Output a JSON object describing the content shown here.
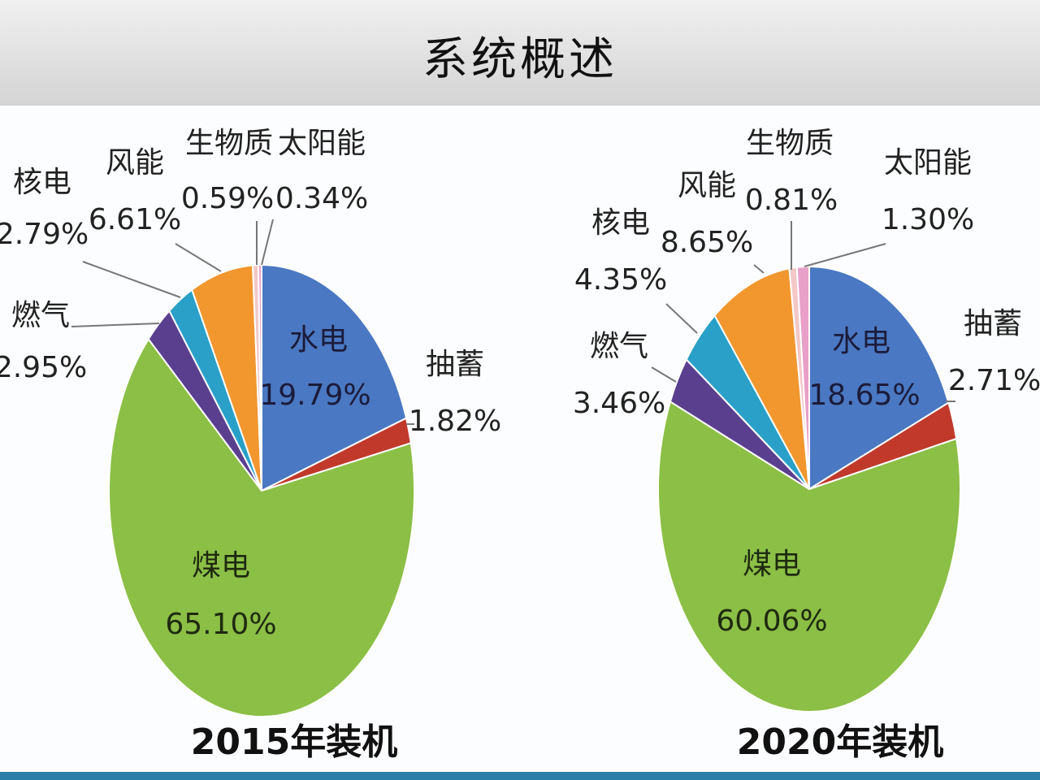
{
  "page": {
    "title": "系统概述"
  },
  "colors": {
    "水电": "#4a78c2",
    "抽蓄": "#c0392b",
    "煤电": "#8bbf46",
    "燃气": "#5a3f8f",
    "核电": "#2aa0c8",
    "风能": "#f2962e",
    "生物质": "#f4c8c8",
    "太阳能": "#e8a0c8"
  },
  "chart_data": [
    {
      "type": "pie",
      "caption": "2015年装机",
      "slices": [
        {
          "name": "水电",
          "value": 19.79,
          "label": "19.79%"
        },
        {
          "name": "抽蓄",
          "value": 1.82,
          "label": "1.82%"
        },
        {
          "name": "煤电",
          "value": 65.1,
          "label": "65.10%"
        },
        {
          "name": "燃气",
          "value": 2.95,
          "label": "2.95%"
        },
        {
          "name": "核电",
          "value": 2.79,
          "label": "2.79%"
        },
        {
          "name": "风能",
          "value": 6.61,
          "label": "6.61%"
        },
        {
          "name": "生物质",
          "value": 0.59,
          "label": "0.59%"
        },
        {
          "name": "太阳能",
          "value": 0.34,
          "label": "0.34%"
        }
      ]
    },
    {
      "type": "pie",
      "caption": "2020年装机",
      "slices": [
        {
          "name": "水电",
          "value": 18.65,
          "label": "18.65%"
        },
        {
          "name": "抽蓄",
          "value": 2.71,
          "label": "2.71%"
        },
        {
          "name": "煤电",
          "value": 60.06,
          "label": "60.06%"
        },
        {
          "name": "燃气",
          "value": 3.46,
          "label": "3.46%"
        },
        {
          "name": "核电",
          "value": 4.35,
          "label": "4.35%"
        },
        {
          "name": "风能",
          "value": 8.65,
          "label": "8.65%"
        },
        {
          "name": "生物质",
          "value": 0.81,
          "label": "0.81%"
        },
        {
          "name": "太阳能",
          "value": 1.3,
          "label": "1.30%"
        }
      ]
    }
  ]
}
